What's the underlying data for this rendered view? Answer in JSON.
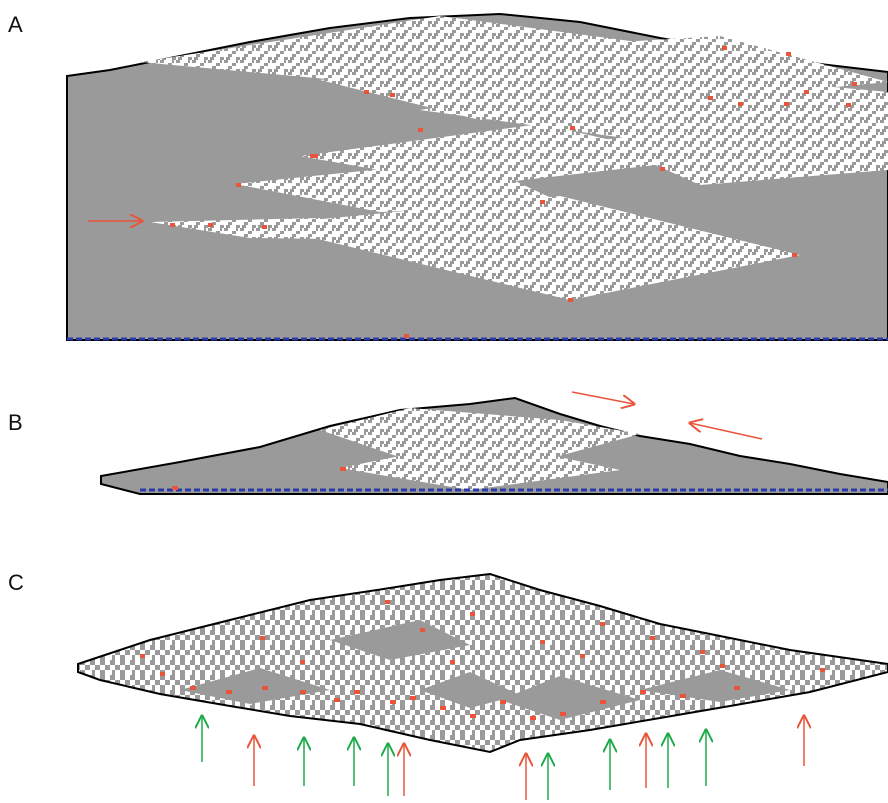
{
  "panels": [
    {
      "label": "A"
    },
    {
      "label": "B"
    },
    {
      "label": "C"
    }
  ],
  "colors": {
    "background": "#ffffff",
    "grey_fill": "#9a9a9a",
    "pattern_white": "#ffffff",
    "outline": "#000000",
    "red_marker": "#e8553a",
    "green_arrow": "#1faa4a",
    "baseline_blue": "#2a3aa8"
  },
  "icons": {
    "panel_a_arrow": "right-arrow-icon",
    "panel_b_arrows": [
      "right-arrow-icon",
      "left-arrow-icon"
    ],
    "panel_c_arrows": [
      "up-arrow-icon"
    ]
  },
  "panel_c_arrows": [
    "green",
    "red",
    "green",
    "green",
    "green",
    "red",
    "red",
    "green",
    "green",
    "red",
    "green",
    "green",
    "red"
  ]
}
